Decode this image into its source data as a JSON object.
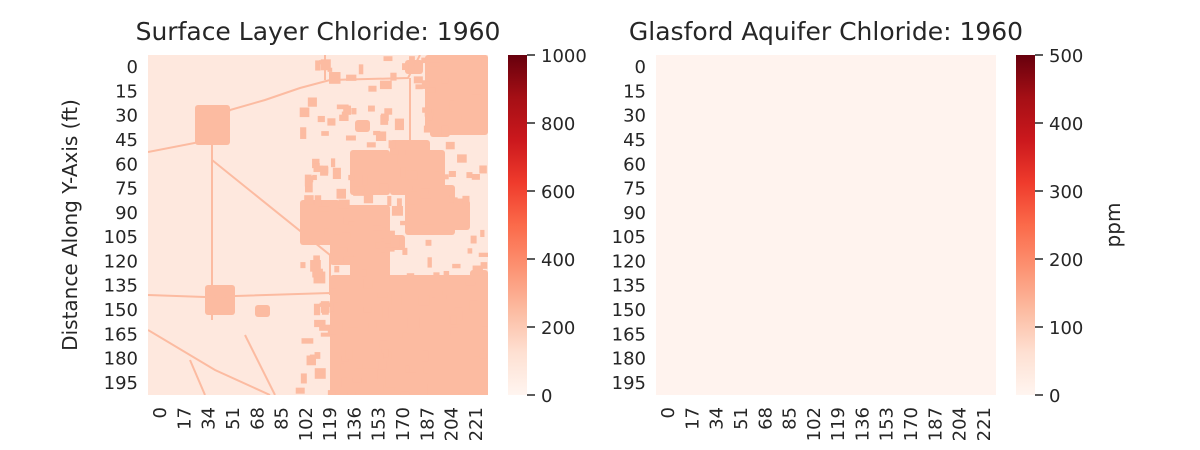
{
  "chart_data": [
    {
      "type": "heatmap",
      "title": "Surface Layer Chloride: 1960",
      "xlabel": "",
      "ylabel": "Distance Along Y-Axis (ft)",
      "x_ticks": [
        "0",
        "17",
        "34",
        "51",
        "68",
        "85",
        "102",
        "119",
        "136",
        "153",
        "170",
        "187",
        "204",
        "221"
      ],
      "y_ticks": [
        "0",
        "15",
        "30",
        "45",
        "60",
        "75",
        "90",
        "105",
        "120",
        "135",
        "150",
        "165",
        "180",
        "195"
      ],
      "colormap": "Reds",
      "colorbar": {
        "label": "",
        "min": 0,
        "max": 1000,
        "ticks": [
          "0",
          "200",
          "400",
          "600",
          "800",
          "1000"
        ]
      },
      "description_values": {
        "background_ppm": 20,
        "affected_area_ppm": 250
      }
    },
    {
      "type": "heatmap",
      "title": "Glasford Aquifer Chloride: 1960",
      "xlabel": "",
      "ylabel": "",
      "x_ticks": [
        "0",
        "17",
        "34",
        "51",
        "68",
        "85",
        "102",
        "119",
        "136",
        "153",
        "170",
        "187",
        "204",
        "221"
      ],
      "y_ticks": [
        "0",
        "15",
        "30",
        "45",
        "60",
        "75",
        "90",
        "105",
        "120",
        "135",
        "150",
        "165",
        "180",
        "195"
      ],
      "colormap": "Reds",
      "colorbar": {
        "label": "ppm",
        "min": 0,
        "max": 500,
        "ticks": [
          "0",
          "100",
          "200",
          "300",
          "400",
          "500"
        ]
      },
      "description_values": {
        "background_ppm": 10
      }
    }
  ],
  "colors": {
    "reds_low": "#fff5f0",
    "reds_mid": "#fb6a4a",
    "reds_high": "#67000d",
    "surface_background": "#fee8de",
    "surface_affected": "#fcbba1",
    "glasford_background": "#fff3ee"
  }
}
